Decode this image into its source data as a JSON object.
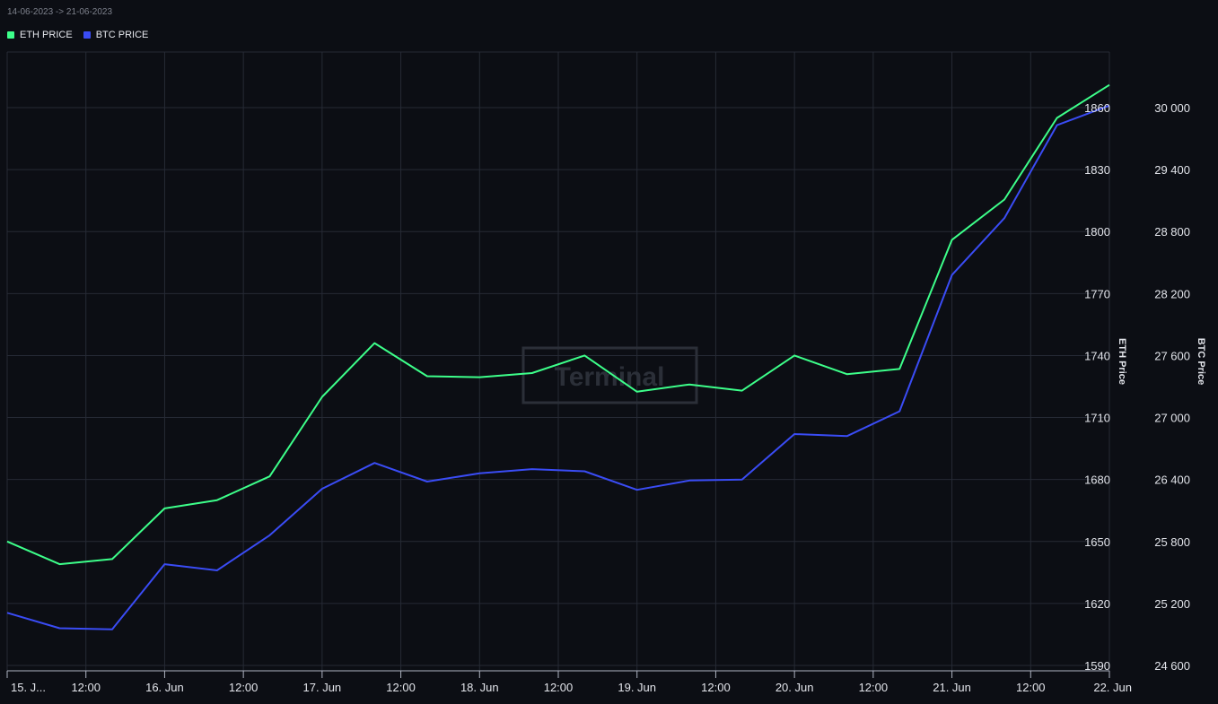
{
  "header": {
    "date_range": "14-06-2023 -> 21-06-2023"
  },
  "legend": {
    "items": [
      {
        "label": "ETH PRICE",
        "color": "#3dff8a"
      },
      {
        "label": "BTC PRICE",
        "color": "#3a4cf5"
      }
    ]
  },
  "watermark": {
    "text": "Terminal"
  },
  "chart_data": {
    "type": "line",
    "x_tick_labels": [
      "15. J...",
      "12:00",
      "16. Jun",
      "12:00",
      "17. Jun",
      "12:00",
      "18. Jun",
      "12:00",
      "19. Jun",
      "12:00",
      "20. Jun",
      "12:00",
      "21. Jun",
      "12:00",
      "22. Jun"
    ],
    "x_range_days": [
      14.0,
      21.0
    ],
    "y_left": {
      "label": "ETH Price",
      "ticks": [
        1590,
        1620,
        1650,
        1680,
        1710,
        1740,
        1770,
        1800,
        1830,
        1860
      ],
      "range": [
        1590,
        1860
      ]
    },
    "y_right": {
      "label": "BTC Price",
      "ticks": [
        "24 600",
        "25 200",
        "25 800",
        "26 400",
        "27 000",
        "27 600",
        "28 200",
        "28 800",
        "29 400",
        "30 000"
      ],
      "range": [
        24600,
        30000
      ]
    },
    "series": [
      {
        "name": "ETH PRICE",
        "axis": "left",
        "color": "#3dff8a",
        "x": [
          14.0,
          14.333,
          14.667,
          15.0,
          15.333,
          15.667,
          16.0,
          16.333,
          16.667,
          17.0,
          17.333,
          17.667,
          18.0,
          18.333,
          18.667,
          19.0,
          19.333,
          19.667,
          20.0,
          20.333,
          20.667,
          21.0
        ],
        "values": [
          1650,
          1639,
          1641.5,
          1666,
          1670,
          1681.5,
          1720,
          1746,
          1730,
          1729.5,
          1731.5,
          1740,
          1722.5,
          1726,
          1723,
          1740,
          1731,
          1733.5,
          1796,
          1815.5,
          1855,
          1871
        ]
      },
      {
        "name": "BTC PRICE",
        "axis": "left",
        "color": "#3a4cf5",
        "x": [
          14.0,
          14.333,
          14.667,
          15.0,
          15.333,
          15.667,
          16.0,
          16.333,
          16.667,
          17.0,
          17.333,
          17.667,
          18.0,
          18.333,
          18.667,
          19.0,
          19.333,
          19.667,
          20.0,
          20.333,
          20.667,
          21.0
        ],
        "values": [
          1615.5,
          1608,
          1607.5,
          1639,
          1636,
          1653,
          1675.5,
          1688,
          1679,
          1683,
          1685,
          1684,
          1675,
          1679.5,
          1680,
          1702,
          1701,
          1713,
          1779,
          1806.5,
          1851.5,
          1861
        ]
      }
    ]
  }
}
